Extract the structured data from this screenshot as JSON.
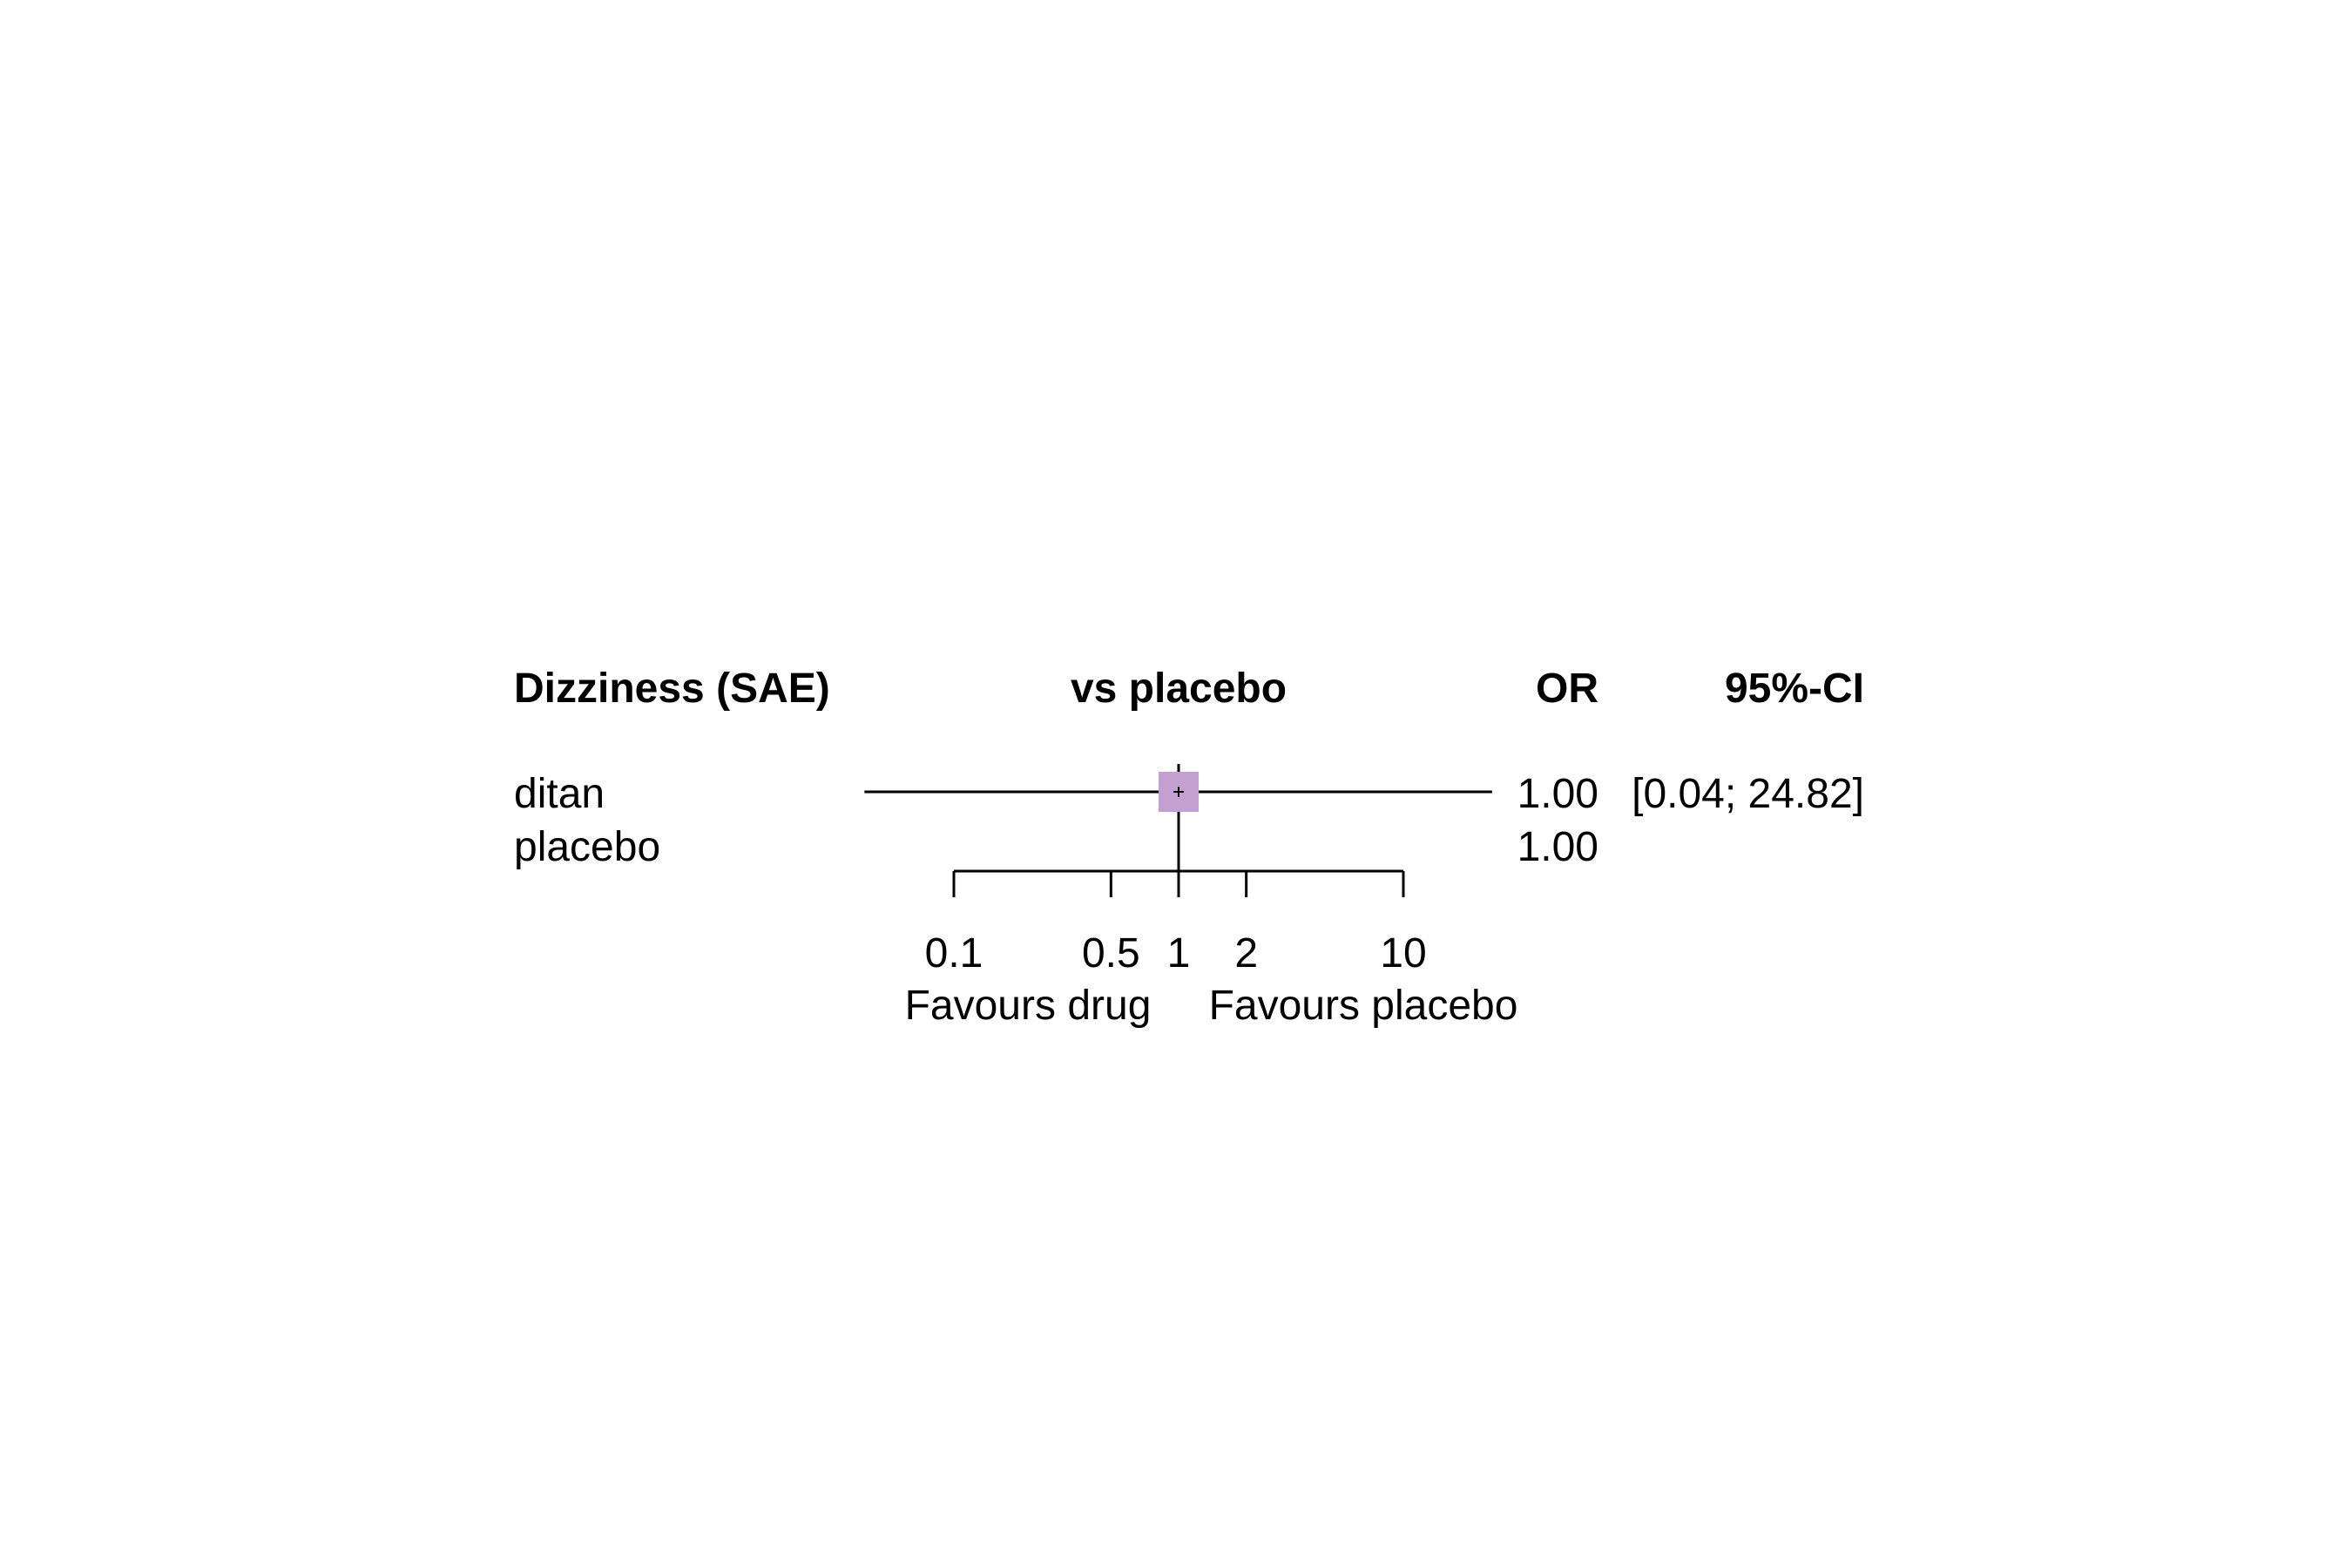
{
  "chart_data": {
    "type": "forest",
    "scale": "log",
    "headers": {
      "label": "Dizziness (SAE)",
      "plot": "vs placebo",
      "estimate": "OR",
      "ci": "95%-CI"
    },
    "rows": [
      {
        "label": "ditan",
        "or": 1.0,
        "ci_low": 0.04,
        "ci_high": 24.82,
        "or_text": "1.00",
        "ci_text": "[0.04; 24.82]"
      },
      {
        "label": "placebo",
        "or": 1.0,
        "or_text": "1.00",
        "ci_text": ""
      }
    ],
    "x_ticks": [
      0.1,
      0.5,
      1,
      2,
      10
    ],
    "x_tick_labels": [
      "0.1",
      "0.5",
      "1",
      "2",
      "10"
    ],
    "xlim": [
      0.04,
      24.82
    ],
    "reference_line": 1,
    "xlabel_left": "Favours drug",
    "xlabel_right": "Favours placebo",
    "marker_color": "#c3a0d0",
    "line_color": "#000000"
  }
}
